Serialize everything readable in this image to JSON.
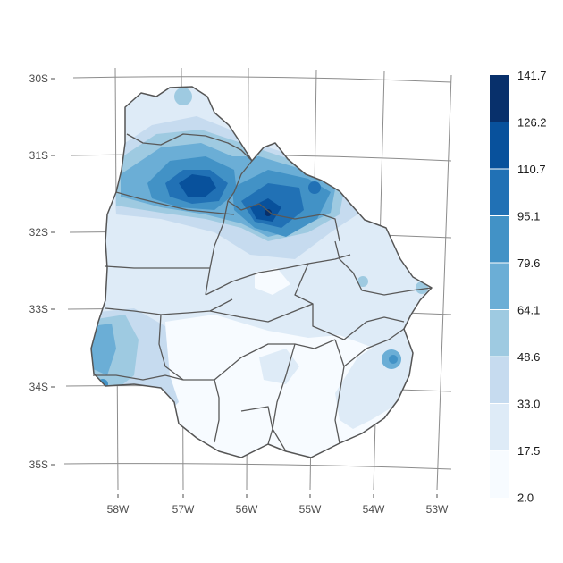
{
  "map": {
    "latitude_labels": [
      "30S",
      "31S",
      "32S",
      "33S",
      "34S",
      "35S"
    ],
    "longitude_labels": [
      "58W",
      "57W",
      "56W",
      "55W",
      "54W",
      "53W"
    ]
  },
  "legend": {
    "breaks": [
      "141.7",
      "126.2",
      "110.7",
      "95.1",
      "79.6",
      "64.1",
      "48.6",
      "33.0",
      "17.5",
      "2.0"
    ],
    "colors": [
      "#08306b",
      "#08519c",
      "#2171b5",
      "#4292c6",
      "#6baed6",
      "#9ecae1",
      "#c6dbef",
      "#deebf7",
      "#f7fbff"
    ]
  }
}
